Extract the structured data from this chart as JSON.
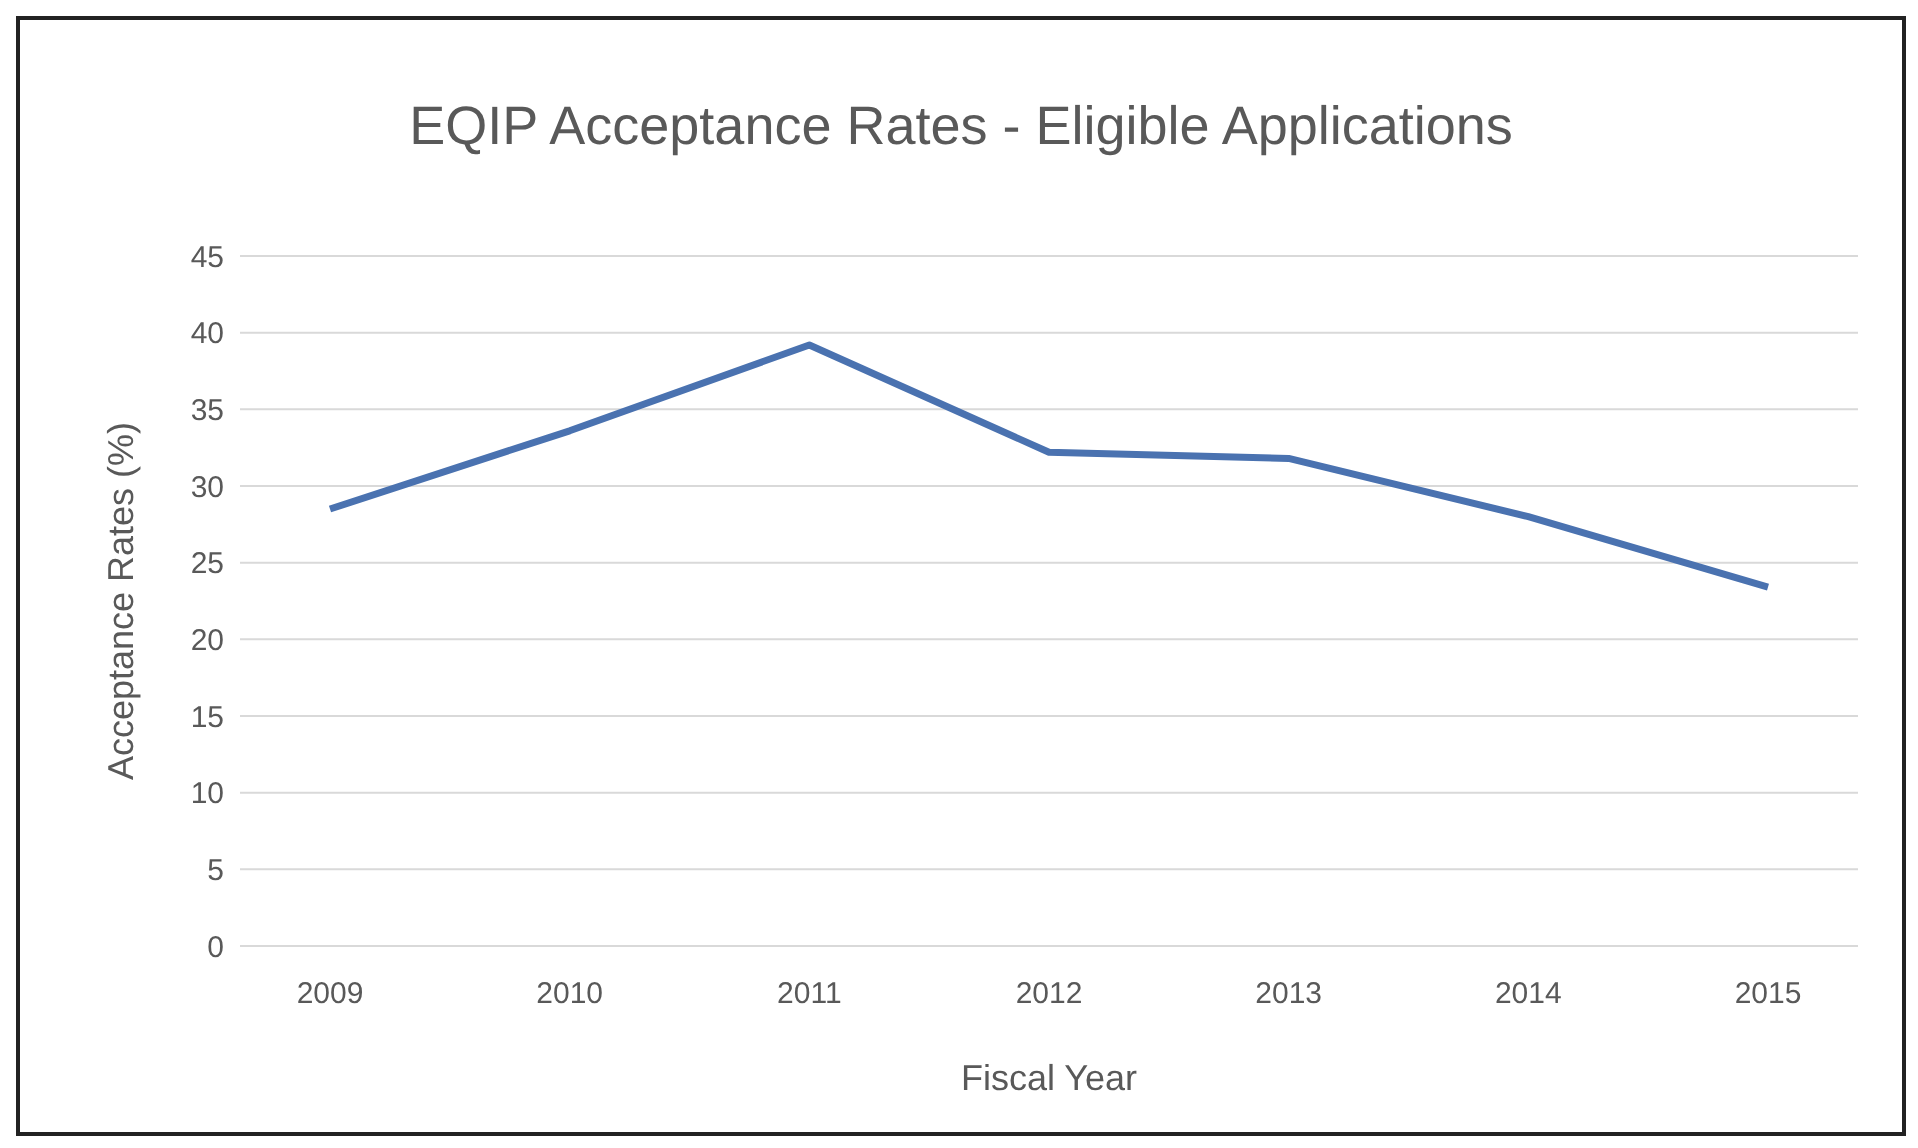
{
  "chart_data": {
    "type": "line",
    "title": "EQIP Acceptance Rates - Eligible Applications",
    "xlabel": "Fiscal Year",
    "ylabel": "Acceptance Rates (%)",
    "categories": [
      "2009",
      "2010",
      "2011",
      "2012",
      "2013",
      "2014",
      "2015"
    ],
    "series": [
      {
        "color": "#4a72b0",
        "values": [
          28.5,
          33.6,
          39.2,
          32.2,
          31.8,
          28,
          23.4
        ]
      }
    ],
    "ylim": [
      0,
      45
    ],
    "yticks": [
      0,
      5,
      10,
      15,
      20,
      25,
      30,
      35,
      40,
      45
    ],
    "grid": "y",
    "legend": false,
    "marker": "none",
    "line_style": "solid"
  }
}
